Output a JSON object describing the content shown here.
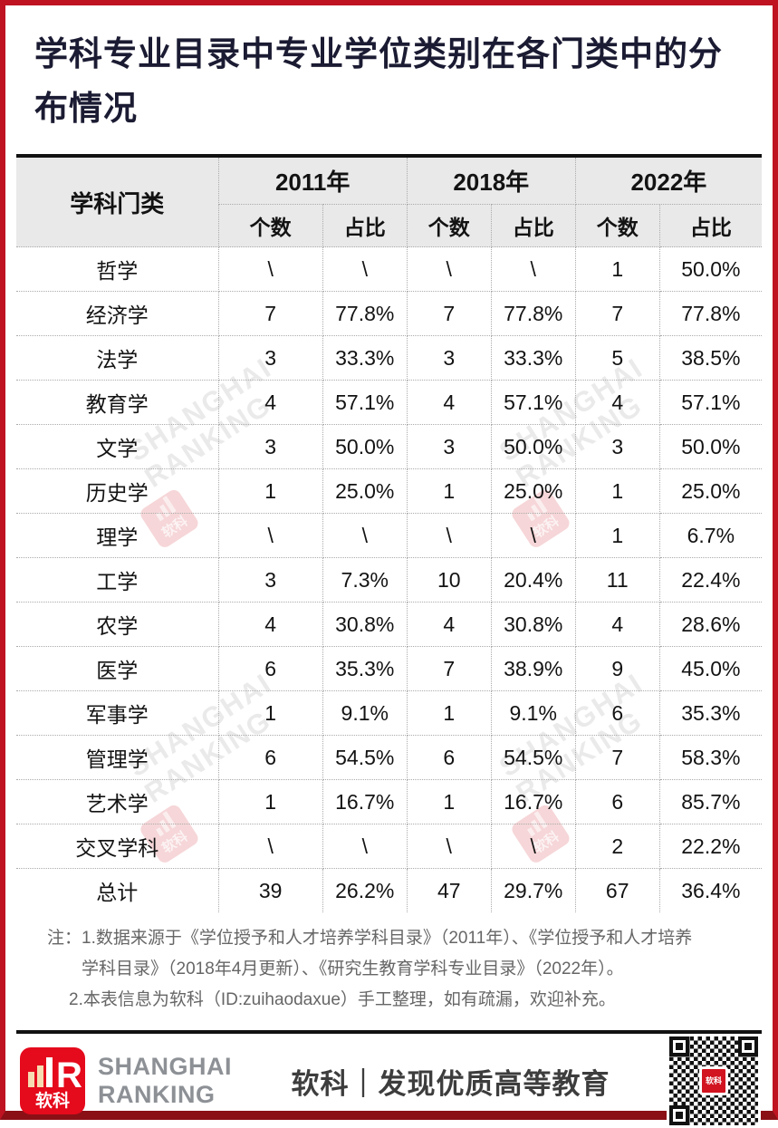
{
  "title": {
    "line1": "学科专业目录中专业学位类别在各门类中的分",
    "line2": "布情况",
    "full": "学科专业目录中专业学位类别在各门类中的分布情况"
  },
  "chart_data": {
    "type": "table",
    "title": "学科专业目录中专业学位类别在各门类中的分布情况",
    "corner_header": "学科门类",
    "year_groups": [
      {
        "label": "2011年"
      },
      {
        "label": "2018年"
      },
      {
        "label": "2022年"
      }
    ],
    "sub_headers": [
      "个数",
      "占比"
    ],
    "rows": [
      {
        "category": "哲学",
        "cells": [
          "\\",
          "\\",
          "\\",
          "\\",
          "1",
          "50.0%"
        ]
      },
      {
        "category": "经济学",
        "cells": [
          "7",
          "77.8%",
          "7",
          "77.8%",
          "7",
          "77.8%"
        ]
      },
      {
        "category": "法学",
        "cells": [
          "3",
          "33.3%",
          "3",
          "33.3%",
          "5",
          "38.5%"
        ]
      },
      {
        "category": "教育学",
        "cells": [
          "4",
          "57.1%",
          "4",
          "57.1%",
          "4",
          "57.1%"
        ]
      },
      {
        "category": "文学",
        "cells": [
          "3",
          "50.0%",
          "3",
          "50.0%",
          "3",
          "50.0%"
        ]
      },
      {
        "category": "历史学",
        "cells": [
          "1",
          "25.0%",
          "1",
          "25.0%",
          "1",
          "25.0%"
        ]
      },
      {
        "category": "理学",
        "cells": [
          "\\",
          "\\",
          "\\",
          "\\",
          "1",
          "6.7%"
        ]
      },
      {
        "category": "工学",
        "cells": [
          "3",
          "7.3%",
          "10",
          "20.4%",
          "11",
          "22.4%"
        ]
      },
      {
        "category": "农学",
        "cells": [
          "4",
          "30.8%",
          "4",
          "30.8%",
          "4",
          "28.6%"
        ]
      },
      {
        "category": "医学",
        "cells": [
          "6",
          "35.3%",
          "7",
          "38.9%",
          "9",
          "45.0%"
        ]
      },
      {
        "category": "军事学",
        "cells": [
          "1",
          "9.1%",
          "1",
          "9.1%",
          "6",
          "35.3%"
        ]
      },
      {
        "category": "管理学",
        "cells": [
          "6",
          "54.5%",
          "6",
          "54.5%",
          "7",
          "58.3%"
        ]
      },
      {
        "category": "艺术学",
        "cells": [
          "1",
          "16.7%",
          "1",
          "16.7%",
          "6",
          "85.7%"
        ]
      },
      {
        "category": "交叉学科",
        "cells": [
          "\\",
          "\\",
          "\\",
          "\\",
          "2",
          "22.2%"
        ]
      },
      {
        "category": "总计",
        "cells": [
          "39",
          "26.2%",
          "47",
          "29.7%",
          "67",
          "36.4%"
        ]
      }
    ]
  },
  "notes": {
    "label": "注：",
    "line1": "1.数据来源于《学位授予和人才培养学科目录》（2011年）、《学位授予和人才培养",
    "line2": "学科目录》（2018年4月更新）、《研究生教育学科专业目录》（2022年）。",
    "line3": "2.本表信息为软科（ID:zuihaodaxue）手工整理，如有疏漏，欢迎补充。"
  },
  "footer": {
    "logo_text": "软科",
    "logo_letter": "R",
    "brand_line1": "SHANGHAI",
    "brand_line2": "RANKING",
    "slogan": "软科｜发现优质高等教育"
  },
  "watermark": {
    "line1": "SHANGHAI",
    "line2": "RANKING",
    "logo_text": "软科"
  },
  "colors": {
    "border_red": "#bf1322",
    "bottom_bar_red": "#8a1016",
    "logo_red": "#e50a1c",
    "title_text": "#1b1b33",
    "header_bg": "#e9e9e9",
    "table_rule_black": "#121212",
    "dotted_gray": "#ababab",
    "note_gray": "#666666",
    "brand_gray": "#8d9196"
  }
}
